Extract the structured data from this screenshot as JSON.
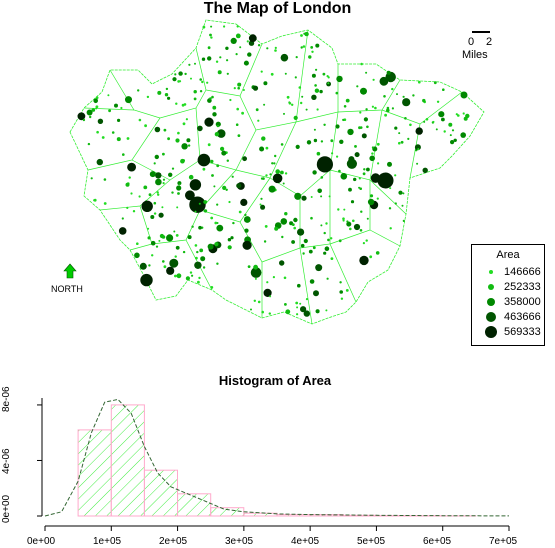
{
  "map": {
    "title": "The Map of London",
    "scale_bar": {
      "left_label": "0",
      "right_label": "2",
      "unit": "Miles"
    },
    "north_arrow": {
      "label": "NORTH",
      "color": "#00cc00"
    },
    "boundary_color": "#33ee33",
    "legend": {
      "title": "Area",
      "items": [
        {
          "label": "146666",
          "color": "#22dd22"
        },
        {
          "label": "252333",
          "color": "#11bb11"
        },
        {
          "label": "358000",
          "color": "#008800"
        },
        {
          "label": "463666",
          "color": "#005500"
        },
        {
          "label": "569333",
          "color": "#002200"
        }
      ]
    }
  },
  "chart_data": {
    "type": "bar",
    "title": "Histogram of Area",
    "xlabel": "",
    "ylabel": "",
    "xlim": [
      0,
      700000
    ],
    "ylim": [
      0,
      8.5e-06
    ],
    "bin_width": 50000,
    "bins": [
      {
        "x0": 0,
        "x1": 50000,
        "density": 0
      },
      {
        "x0": 50000,
        "x1": 100000,
        "density": 6.2e-06
      },
      {
        "x0": 100000,
        "x1": 150000,
        "density": 8e-06
      },
      {
        "x0": 150000,
        "x1": 200000,
        "density": 3.3e-06
      },
      {
        "x0": 200000,
        "x1": 250000,
        "density": 1.6e-06
      },
      {
        "x0": 250000,
        "x1": 300000,
        "density": 6e-07
      },
      {
        "x0": 300000,
        "x1": 350000,
        "density": 2e-07
      },
      {
        "x0": 350000,
        "x1": 400000,
        "density": 1e-07
      },
      {
        "x0": 400000,
        "x1": 450000,
        "density": 1e-07
      },
      {
        "x0": 450000,
        "x1": 500000,
        "density": 5e-08
      },
      {
        "x0": 500000,
        "x1": 550000,
        "density": 3e-08
      },
      {
        "x0": 550000,
        "x1": 600000,
        "density": 2e-08
      },
      {
        "x0": 600000,
        "x1": 650000,
        "density": 1e-08
      },
      {
        "x0": 650000,
        "x1": 700000,
        "density": 0
      }
    ],
    "density_curve": {
      "x": [
        0,
        25000,
        50000,
        70000,
        90000,
        110000,
        130000,
        150000,
        170000,
        190000,
        210000,
        240000,
        270000,
        300000,
        350000,
        400000,
        500000,
        600000,
        700000
      ],
      "y": [
        0,
        3e-07,
        2.5e-06,
        6e-06,
        8.2e-06,
        8.4e-06,
        7.4e-06,
        5e-06,
        3.1e-06,
        2.1e-06,
        1.7e-06,
        1.1e-06,
        5e-07,
        3e-07,
        1.5e-07,
        1e-07,
        5e-08,
        2e-08,
        1e-08
      ]
    },
    "x_ticks": [
      "0e+00",
      "1e+05",
      "2e+05",
      "3e+05",
      "4e+05",
      "5e+05",
      "6e+05",
      "7e+05"
    ],
    "y_ticks": [
      "0e+00",
      "4e-06",
      "8e-06"
    ],
    "bar_border_color": "#ffaacc",
    "hatch_color": "#44ee44",
    "curve_color": "#336633"
  }
}
